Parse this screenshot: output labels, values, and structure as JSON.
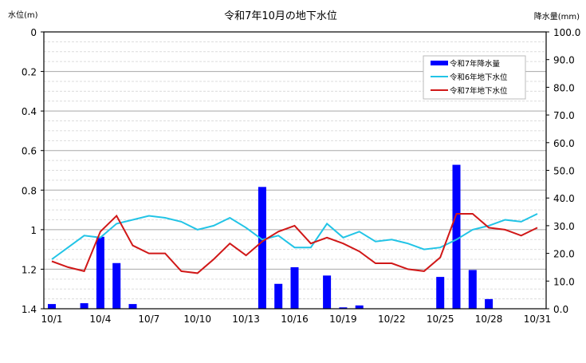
{
  "chart_data": {
    "type": "bar+line",
    "title": "令和7年10月の地下水位",
    "left_axis": {
      "label": "水位(m)",
      "ylim": [
        0,
        1.4
      ],
      "inverted": true,
      "ticks": [
        "0",
        "0.2",
        "0.4",
        "0.6",
        "0.8",
        "1",
        "1.2",
        "1.4"
      ]
    },
    "right_axis": {
      "label": "降水量(mm)",
      "ylim": [
        0,
        100
      ],
      "ticks": [
        "0.0",
        "10.0",
        "20.0",
        "30.0",
        "40.0",
        "50.0",
        "60.0",
        "70.0",
        "80.0",
        "90.0",
        "100.0"
      ]
    },
    "x_tick_labels": [
      "10/1",
      "10/4",
      "10/7",
      "10/10",
      "10/13",
      "10/16",
      "10/19",
      "10/22",
      "10/25",
      "10/28",
      "10/31"
    ],
    "categories": [
      "10/1",
      "10/2",
      "10/3",
      "10/4",
      "10/5",
      "10/6",
      "10/7",
      "10/8",
      "10/9",
      "10/10",
      "10/11",
      "10/12",
      "10/13",
      "10/14",
      "10/15",
      "10/16",
      "10/17",
      "10/18",
      "10/19",
      "10/20",
      "10/21",
      "10/22",
      "10/23",
      "10/24",
      "10/25",
      "10/26",
      "10/27",
      "10/28",
      "10/29",
      "10/30",
      "10/31"
    ],
    "grid": true,
    "legend_position": "upper-right",
    "series": [
      {
        "name": "令和7年降水量",
        "type": "bar",
        "axis": "right",
        "color": "#0000ff",
        "values": [
          1.7,
          0,
          2.0,
          26.0,
          16.5,
          1.7,
          0,
          0,
          0,
          0,
          0,
          0,
          0,
          44.0,
          9.0,
          15.0,
          0,
          12.0,
          0.5,
          1.2,
          0,
          0,
          0,
          0,
          11.5,
          52.0,
          14.0,
          3.5,
          0,
          0,
          0
        ]
      },
      {
        "name": "令和6年地下水位",
        "type": "line",
        "axis": "left",
        "color": "#22c4e6",
        "values": [
          1.15,
          1.09,
          1.03,
          1.04,
          0.97,
          0.95,
          0.93,
          0.94,
          0.96,
          1.0,
          0.98,
          0.94,
          0.99,
          1.05,
          1.03,
          1.09,
          1.09,
          0.97,
          1.04,
          1.01,
          1.06,
          1.05,
          1.07,
          1.1,
          1.09,
          1.05,
          1.0,
          0.98,
          0.95,
          0.96,
          0.92
        ]
      },
      {
        "name": "令和7年地下水位",
        "type": "line",
        "axis": "left",
        "color": "#d01818",
        "values": [
          1.16,
          1.19,
          1.21,
          1.01,
          0.93,
          1.08,
          1.12,
          1.12,
          1.21,
          1.22,
          1.15,
          1.07,
          1.13,
          1.06,
          1.01,
          0.98,
          1.07,
          1.04,
          1.07,
          1.11,
          1.17,
          1.17,
          1.2,
          1.21,
          1.14,
          0.92,
          0.92,
          0.99,
          1.0,
          1.03,
          0.99
        ]
      }
    ]
  }
}
